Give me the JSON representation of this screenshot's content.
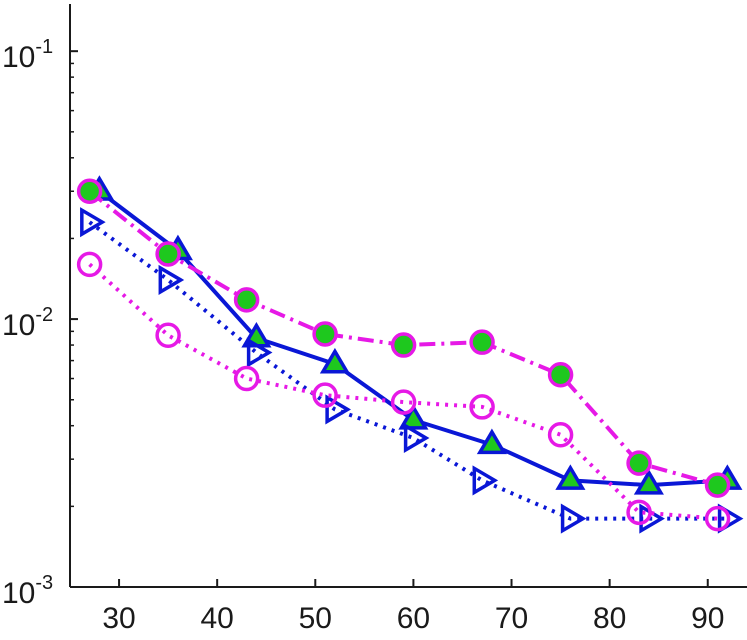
{
  "chart_data": {
    "type": "line",
    "title": "",
    "xlabel": "",
    "ylabel": "",
    "xlim": [
      25,
      94
    ],
    "ylim": [
      0.001,
      0.15
    ],
    "yscale": "log",
    "grid": false,
    "legend": "none",
    "x_ticks": [
      {
        "value": 30,
        "label": "30"
      },
      {
        "value": 40,
        "label": "40"
      },
      {
        "value": 50,
        "label": "50"
      },
      {
        "value": 60,
        "label": "60"
      },
      {
        "value": 70,
        "label": "70"
      },
      {
        "value": 80,
        "label": "80"
      },
      {
        "value": 90,
        "label": "90"
      }
    ],
    "y_ticks": [
      {
        "value": 0.1,
        "base": "10",
        "exponent": "-1"
      },
      {
        "value": 0.01,
        "base": "10",
        "exponent": "-2"
      },
      {
        "value": 0.001,
        "base": "10",
        "exponent": "-3"
      }
    ],
    "series": [
      {
        "color": "#0a17d6",
        "line_style": "solid",
        "marker": "triangle-up",
        "marker_fill": "#1ec81e",
        "x": [
          28,
          36,
          44,
          52,
          60,
          68,
          76,
          84,
          92
        ],
        "y": [
          0.03,
          0.018,
          0.0085,
          0.0068,
          0.0042,
          0.0034,
          0.0025,
          0.0024,
          0.0025
        ]
      },
      {
        "color": "#0a17d6",
        "line_style": "dotted",
        "marker": "triangle-right",
        "marker_fill": "none",
        "x": [
          27,
          35,
          44,
          52,
          60,
          67,
          76,
          84,
          92
        ],
        "y": [
          0.023,
          0.014,
          0.0075,
          0.0046,
          0.0036,
          0.0025,
          0.0018,
          0.0018,
          0.0018
        ]
      },
      {
        "color": "#e619e6",
        "line_style": "dashdot",
        "marker": "circle",
        "marker_fill": "#1ec81e",
        "x": [
          27,
          35,
          43,
          51,
          59,
          67,
          75,
          83,
          91
        ],
        "y": [
          0.03,
          0.0175,
          0.0118,
          0.0088,
          0.008,
          0.0082,
          0.0062,
          0.0029,
          0.0024
        ]
      },
      {
        "color": "#e619e6",
        "line_style": "dotted",
        "marker": "circle",
        "marker_fill": "none",
        "x": [
          27,
          35,
          43,
          51,
          59,
          67,
          75,
          83,
          91
        ],
        "y": [
          0.016,
          0.0087,
          0.006,
          0.0052,
          0.0049,
          0.0047,
          0.0037,
          0.0019,
          0.0018
        ]
      }
    ]
  }
}
